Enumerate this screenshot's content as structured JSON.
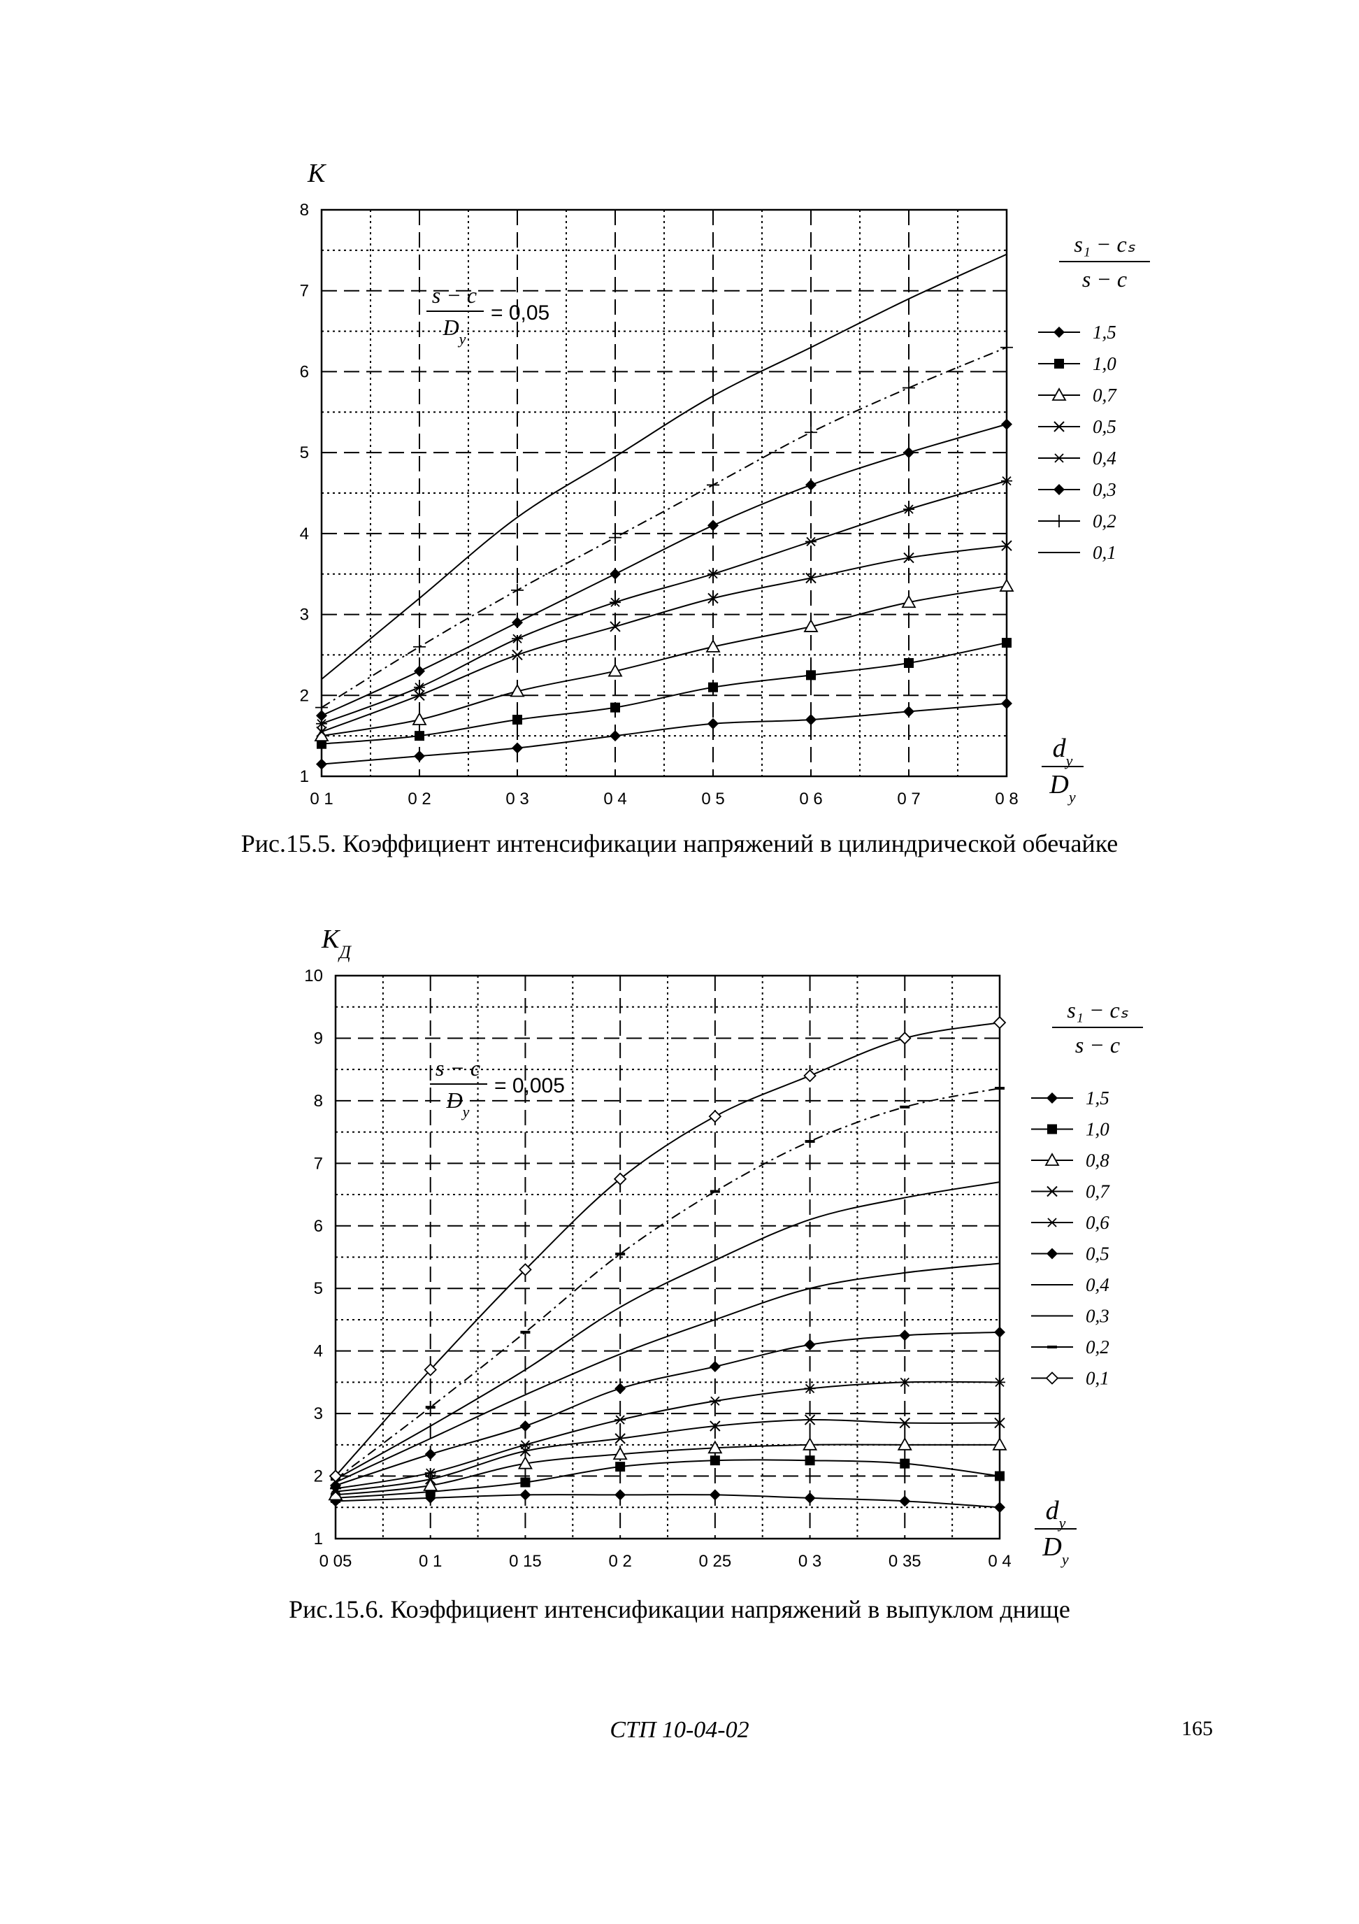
{
  "chart_data": [
    {
      "type": "line",
      "ylabel": "K",
      "xlabel_num": "d",
      "xlabel_num_sub": "у",
      "xlabel_den": "D",
      "xlabel_den_sub": "у",
      "formula_num": "s − c",
      "formula_den": "D",
      "formula_den_sub": "у",
      "formula_value": "= 0,05",
      "legend_title_num": "s₁ − cₛ",
      "legend_title_den": "s − c",
      "xlim": [
        0.1,
        0.8
      ],
      "ylim": [
        1,
        8
      ],
      "x_ticks": [
        0.1,
        0.2,
        0.3,
        0.4,
        0.5,
        0.6,
        0.7,
        0.8
      ],
      "x_tick_labels": [
        "0 1",
        "0 2",
        "0 3",
        "0 4",
        "0 5",
        "0 6",
        "0 7",
        "0 8"
      ],
      "y_ticks": [
        1,
        2,
        3,
        4,
        5,
        6,
        7,
        8
      ],
      "y_tick_labels": [
        "1",
        "2",
        "3",
        "4",
        "5",
        "6",
        "7",
        "8"
      ],
      "grid": true,
      "legend_position": "right",
      "x": [
        0.1,
        0.2,
        0.3,
        0.4,
        0.5,
        0.6,
        0.7,
        0.8
      ],
      "series": [
        {
          "name": "1,5",
          "marker": "diamond",
          "values": [
            1.15,
            1.25,
            1.35,
            1.5,
            1.65,
            1.7,
            1.8,
            1.9
          ]
        },
        {
          "name": "1,0",
          "marker": "square",
          "values": [
            1.4,
            1.5,
            1.7,
            1.85,
            2.1,
            2.25,
            2.4,
            2.65
          ]
        },
        {
          "name": "0,7",
          "marker": "triangle",
          "values": [
            1.5,
            1.7,
            2.05,
            2.3,
            2.6,
            2.85,
            3.15,
            3.35
          ]
        },
        {
          "name": "0,5",
          "marker": "x",
          "values": [
            1.55,
            2.0,
            2.5,
            2.85,
            3.2,
            3.45,
            3.7,
            3.85
          ]
        },
        {
          "name": "0,4",
          "marker": "star",
          "values": [
            1.65,
            2.1,
            2.7,
            3.15,
            3.5,
            3.9,
            4.3,
            4.65
          ]
        },
        {
          "name": "0,3",
          "marker": "diamond",
          "values": [
            1.75,
            2.3,
            2.9,
            3.5,
            4.1,
            4.6,
            5.0,
            5.35
          ]
        },
        {
          "name": "0,2",
          "marker": "plus",
          "values": [
            1.85,
            2.6,
            3.3,
            3.95,
            4.6,
            5.25,
            5.8,
            6.3
          ]
        },
        {
          "name": "0,1",
          "marker": "none",
          "values": [
            2.2,
            3.2,
            4.2,
            4.95,
            5.7,
            6.3,
            6.9,
            7.45
          ]
        }
      ]
    },
    {
      "type": "line",
      "ylabel": "K",
      "ylabel_sub": "Д",
      "xlabel_num": "d",
      "xlabel_num_sub": "у",
      "xlabel_den": "D",
      "xlabel_den_sub": "у",
      "formula_num": "s − c",
      "formula_den": "D",
      "formula_den_sub": "у",
      "formula_value": "= 0,005",
      "legend_title_num": "s₁ − cₛ",
      "legend_title_den": "s − c",
      "xlim": [
        0.05,
        0.4
      ],
      "ylim": [
        1,
        10
      ],
      "x_ticks": [
        0.05,
        0.1,
        0.15,
        0.2,
        0.25,
        0.3,
        0.35,
        0.4
      ],
      "x_tick_labels": [
        "0 05",
        "0 1",
        "0 15",
        "0 2",
        "0 25",
        "0 3",
        "0 35",
        "0 4"
      ],
      "y_ticks": [
        1,
        2,
        3,
        4,
        5,
        6,
        7,
        8,
        9,
        10
      ],
      "y_tick_labels": [
        "1",
        "2",
        "3",
        "4",
        "5",
        "6",
        "7",
        "8",
        "9",
        "10"
      ],
      "grid": true,
      "legend_position": "right",
      "x": [
        0.05,
        0.1,
        0.15,
        0.2,
        0.25,
        0.3,
        0.35,
        0.4
      ],
      "series": [
        {
          "name": "1,5",
          "marker": "diamond",
          "values": [
            1.6,
            1.65,
            1.7,
            1.7,
            1.7,
            1.65,
            1.6,
            1.5
          ]
        },
        {
          "name": "1,0",
          "marker": "square",
          "values": [
            1.65,
            1.75,
            1.9,
            2.15,
            2.25,
            2.25,
            2.2,
            2.0
          ]
        },
        {
          "name": "0,8",
          "marker": "triangle",
          "values": [
            1.7,
            1.85,
            2.2,
            2.35,
            2.45,
            2.5,
            2.5,
            2.5
          ]
        },
        {
          "name": "0,7",
          "marker": "x",
          "values": [
            1.75,
            1.95,
            2.4,
            2.6,
            2.8,
            2.9,
            2.85,
            2.85
          ]
        },
        {
          "name": "0,6",
          "marker": "star",
          "values": [
            1.8,
            2.05,
            2.5,
            2.9,
            3.2,
            3.4,
            3.5,
            3.5
          ]
        },
        {
          "name": "0,5",
          "marker": "diamond",
          "values": [
            1.85,
            2.35,
            2.8,
            3.4,
            3.75,
            4.1,
            4.25,
            4.3
          ]
        },
        {
          "name": "0,4",
          "marker": "none",
          "values": [
            1.9,
            2.6,
            3.3,
            3.95,
            4.5,
            5.0,
            5.25,
            5.4
          ]
        },
        {
          "name": "0,3",
          "marker": "none",
          "values": [
            1.95,
            2.8,
            3.7,
            4.7,
            5.45,
            6.1,
            6.45,
            6.7
          ]
        },
        {
          "name": "0,2",
          "marker": "dash",
          "values": [
            1.95,
            3.1,
            4.3,
            5.55,
            6.55,
            7.35,
            7.9,
            8.2
          ]
        },
        {
          "name": "0,1",
          "marker": "open-diamond",
          "values": [
            2.0,
            3.7,
            5.3,
            6.75,
            7.75,
            8.4,
            9.0,
            9.25
          ]
        }
      ]
    }
  ],
  "captions": {
    "fig1": "Рис.15.5. Коэффициент интенсификации напряжений в цилиндрической обечайке",
    "fig2": "Рис.15.6. Коэффициент интенсификации напряжений в выпуклом днище"
  },
  "footer": {
    "code": "СТП 10-04-02",
    "page_number": "165"
  }
}
